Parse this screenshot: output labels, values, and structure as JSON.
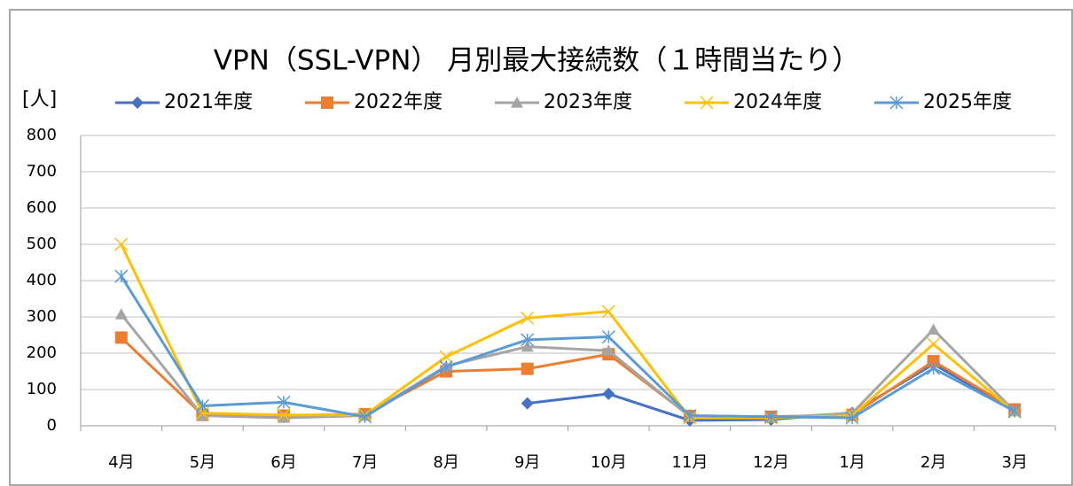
{
  "chart_data": {
    "type": "line",
    "title": "VPN（SSL-VPN） 月別最大接続数（１時間当たり）",
    "y_label": "[人]",
    "categories": [
      "4月",
      "5月",
      "6月",
      "7月",
      "8月",
      "9月",
      "10月",
      "11月",
      "12月",
      "1月",
      "2月",
      "3月"
    ],
    "ylim": [
      0,
      800
    ],
    "yticks": [
      0,
      100,
      200,
      300,
      400,
      500,
      600,
      700,
      800
    ],
    "grid": true,
    "legend": "top",
    "series": [
      {
        "name": "2021年度",
        "color": "#4472c4",
        "marker": "diamond",
        "values": [
          null,
          null,
          null,
          null,
          null,
          62,
          88,
          15,
          17,
          36,
          170,
          42
        ]
      },
      {
        "name": "2022年度",
        "color": "#ed7d31",
        "marker": "square",
        "values": [
          243,
          30,
          28,
          32,
          150,
          157,
          197,
          27,
          25,
          30,
          178,
          45
        ]
      },
      {
        "name": "2023年度",
        "color": "#a5a5a5",
        "marker": "triangle",
        "values": [
          307,
          28,
          22,
          28,
          165,
          218,
          207,
          25,
          22,
          35,
          265,
          40
        ]
      },
      {
        "name": "2024年度",
        "color": "#ffc000",
        "marker": "x",
        "values": [
          500,
          35,
          30,
          30,
          190,
          297,
          315,
          22,
          22,
          28,
          225,
          38
        ]
      },
      {
        "name": "2025年度",
        "color": "#5b9bd5",
        "marker": "star",
        "values": [
          412,
          55,
          65,
          25,
          162,
          237,
          245,
          28,
          25,
          22,
          158,
          40
        ]
      }
    ]
  }
}
